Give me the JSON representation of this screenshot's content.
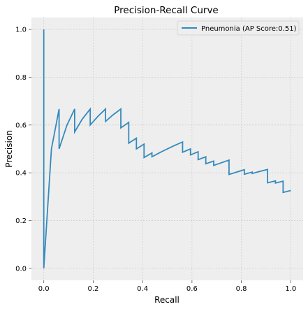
{
  "chart_data": {
    "type": "line",
    "title": "Precision-Recall Curve",
    "xlabel": "Recall",
    "ylabel": "Precision",
    "xlim": [
      -0.05,
      1.05
    ],
    "ylim": [
      -0.05,
      1.05
    ],
    "xticks": [
      0.0,
      0.2,
      0.4,
      0.6,
      0.8,
      1.0
    ],
    "xtick_labels": [
      "0.0",
      "0.2",
      "0.4",
      "0.6",
      "0.8",
      "1.0"
    ],
    "yticks": [
      0.0,
      0.2,
      0.4,
      0.6,
      0.8,
      1.0
    ],
    "ytick_labels": [
      "0.0",
      "0.2",
      "0.4",
      "0.6",
      "0.8",
      "1.0"
    ],
    "grid": true,
    "legend_position": "top-right",
    "colors": {
      "series": "#348abd",
      "plot_bg": "#eeeeee",
      "grid": "#cfcfcf"
    },
    "series": [
      {
        "name": "Pneumonia (AP Score:0.51)",
        "x": [
          0.0,
          0.0,
          0.0,
          0.031,
          0.062,
          0.062,
          0.094,
          0.125,
          0.125,
          0.156,
          0.188,
          0.188,
          0.219,
          0.25,
          0.25,
          0.281,
          0.312,
          0.312,
          0.344,
          0.344,
          0.375,
          0.375,
          0.406,
          0.406,
          0.438,
          0.438,
          0.469,
          0.5,
          0.531,
          0.562,
          0.562,
          0.594,
          0.594,
          0.625,
          0.625,
          0.656,
          0.656,
          0.688,
          0.688,
          0.719,
          0.75,
          0.75,
          0.781,
          0.812,
          0.812,
          0.844,
          0.844,
          0.875,
          0.906,
          0.906,
          0.938,
          0.938,
          0.969,
          0.969,
          1.0
        ],
        "y": [
          1.0,
          0.0,
          0.0,
          0.5,
          0.667,
          0.5,
          0.6,
          0.667,
          0.571,
          0.625,
          0.667,
          0.6,
          0.636,
          0.667,
          0.615,
          0.643,
          0.667,
          0.588,
          0.611,
          0.524,
          0.545,
          0.5,
          0.52,
          0.464,
          0.483,
          0.467,
          0.484,
          0.5,
          0.515,
          0.529,
          0.486,
          0.5,
          0.475,
          0.488,
          0.455,
          0.467,
          0.438,
          0.449,
          0.431,
          0.442,
          0.453,
          0.393,
          0.403,
          0.413,
          0.394,
          0.403,
          0.397,
          0.406,
          0.414,
          0.358,
          0.366,
          0.357,
          0.365,
          0.318,
          0.326
        ]
      }
    ]
  }
}
